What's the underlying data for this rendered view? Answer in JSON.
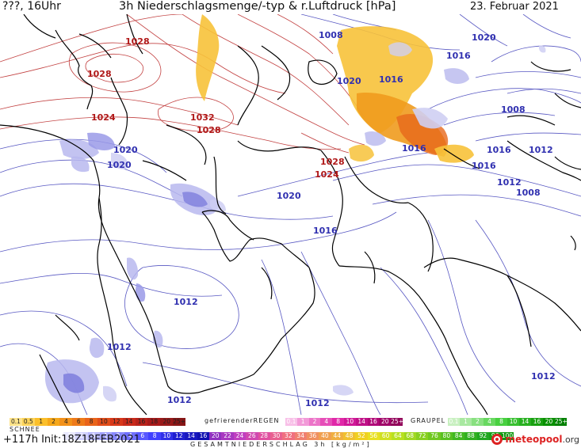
{
  "header": {
    "location": "???, 16Uhr",
    "title": "3h Niederschlagsmenge/-typ & r.Luftdruck [hPa]",
    "date": "23. Februar 2021"
  },
  "isobars": [
    {
      "value": "1028",
      "color": "#b01818"
    },
    {
      "value": "1028",
      "color": "#b01818"
    },
    {
      "value": "1024",
      "color": "#b01818"
    },
    {
      "value": "1032",
      "color": "#b01818"
    },
    {
      "value": "1028",
      "color": "#b01818"
    },
    {
      "value": "1020",
      "color": "#3030b0"
    },
    {
      "value": "1020",
      "color": "#3030b0"
    },
    {
      "value": "1028",
      "color": "#b01818"
    },
    {
      "value": "1024",
      "color": "#b01818"
    },
    {
      "value": "1020",
      "color": "#3030b0"
    },
    {
      "value": "1016",
      "color": "#3030b0"
    },
    {
      "value": "1008",
      "color": "#3030b0"
    },
    {
      "value": "1020",
      "color": "#3030b0"
    },
    {
      "value": "1016",
      "color": "#3030b0"
    },
    {
      "value": "1016",
      "color": "#3030b0"
    },
    {
      "value": "1020",
      "color": "#3030b0"
    },
    {
      "value": "1016",
      "color": "#3030b0"
    },
    {
      "value": "1008",
      "color": "#3030b0"
    },
    {
      "value": "1016",
      "color": "#3030b0"
    },
    {
      "value": "1012",
      "color": "#3030b0"
    },
    {
      "value": "1016",
      "color": "#3030b0"
    },
    {
      "value": "1012",
      "color": "#3030b0"
    },
    {
      "value": "1008",
      "color": "#3030b0"
    },
    {
      "value": "1012",
      "color": "#3030b0"
    },
    {
      "value": "1012",
      "color": "#3030b0"
    },
    {
      "value": "1012",
      "color": "#3030b0"
    },
    {
      "value": "1012",
      "color": "#3030b0"
    },
    {
      "value": "1012",
      "color": "#3030b0"
    },
    {
      "value": "1012",
      "color": "#3030b0"
    }
  ],
  "legend": {
    "snow_label": "SCHNEE",
    "freezing_rain_label": "gefrierenderREGEN",
    "graupel_label": "GRAUPEL",
    "total_label": "GESAMTNIEDERSCHLAG 3h [kg/m²]",
    "snow_top": [
      "0.1",
      "0.5",
      "1",
      "2",
      "4",
      "6",
      "8",
      "10",
      "12",
      "14",
      "16",
      "18",
      "20",
      "25+"
    ],
    "snow_bottom": [
      "0.1",
      "0.5",
      "1",
      "2",
      "4",
      "6",
      "8",
      "10",
      "12",
      "14",
      "16",
      "18",
      "20",
      "25+"
    ],
    "freezing_rain": [
      "0.1",
      "1",
      "2",
      "4",
      "8",
      "10",
      "14",
      "16",
      "20",
      "25+"
    ],
    "graupel": [
      "0.1",
      "1",
      "2",
      "4",
      "8",
      "10",
      "14",
      "16",
      "20",
      "25+"
    ],
    "total": [
      "1",
      "2",
      "5",
      "1",
      "2",
      "4",
      "6",
      "8",
      "10",
      "12",
      "14",
      "16",
      "20",
      "22",
      "24",
      "26",
      "28",
      "30",
      "32",
      "34",
      "36",
      "40",
      "44",
      "48",
      "52",
      "56",
      "60",
      "64",
      "68",
      "72",
      "76",
      "80",
      "84",
      "88",
      "92",
      "96",
      "100"
    ],
    "colors_snow_top": [
      "#fde38a",
      "#fcd35a",
      "#fbbf2a",
      "#f6a81a",
      "#f2911a",
      "#ee7a1a",
      "#e9641a",
      "#e04d1a",
      "#d8381a",
      "#c82a1a",
      "#b8221a",
      "#a81a1a",
      "#981a1a",
      "#881616"
    ],
    "colors_snow_bottom": [
      "#d6d6f4",
      "#b8b8ee",
      "#9a9ae8",
      "#7c7ce2",
      "#5e5edc",
      "#4848d0",
      "#3a3ac4",
      "#2e2eb4",
      "#2424a4",
      "#1c1c94",
      "#141484",
      "#0c0c74",
      "#060664",
      "#000054"
    ],
    "colors_freezing": [
      "#f8c0e8",
      "#f29ad8",
      "#ec74c8",
      "#e64eb8",
      "#e028a8",
      "#d01898",
      "#c01088",
      "#b00878",
      "#a00468",
      "#900058"
    ],
    "colors_graupel": [
      "#c8f0c0",
      "#a8e8a0",
      "#88e080",
      "#68d860",
      "#48d040",
      "#38c030",
      "#28b020",
      "#18a010",
      "#089000",
      "#008000"
    ],
    "colors_total": [
      "#e8e8ff",
      "#d0d0ff",
      "#b8b8ff",
      "#a0a0ff",
      "#8888ff",
      "#7070ff",
      "#5858ff",
      "#4040ff",
      "#3030e8",
      "#2020d0",
      "#1818c0",
      "#1010b0",
      "#9030c0",
      "#a838c0",
      "#c040c0",
      "#d048b0",
      "#e050a0",
      "#e86090",
      "#f07080",
      "#f08070",
      "#f09060",
      "#f0a050",
      "#f0b040",
      "#f0c030",
      "#f0d020",
      "#e8e020",
      "#d0e020",
      "#b8e020",
      "#a0d820",
      "#88d020",
      "#70c820",
      "#58c020",
      "#40b820",
      "#30b020",
      "#20a820",
      "#18a018",
      "#109810"
    ],
    "forecast_hour": "+117h",
    "init": "Init:18Z18FEB2021"
  },
  "brand": {
    "name": "meteopool",
    ".org": ".org",
    "domain": ".org"
  }
}
